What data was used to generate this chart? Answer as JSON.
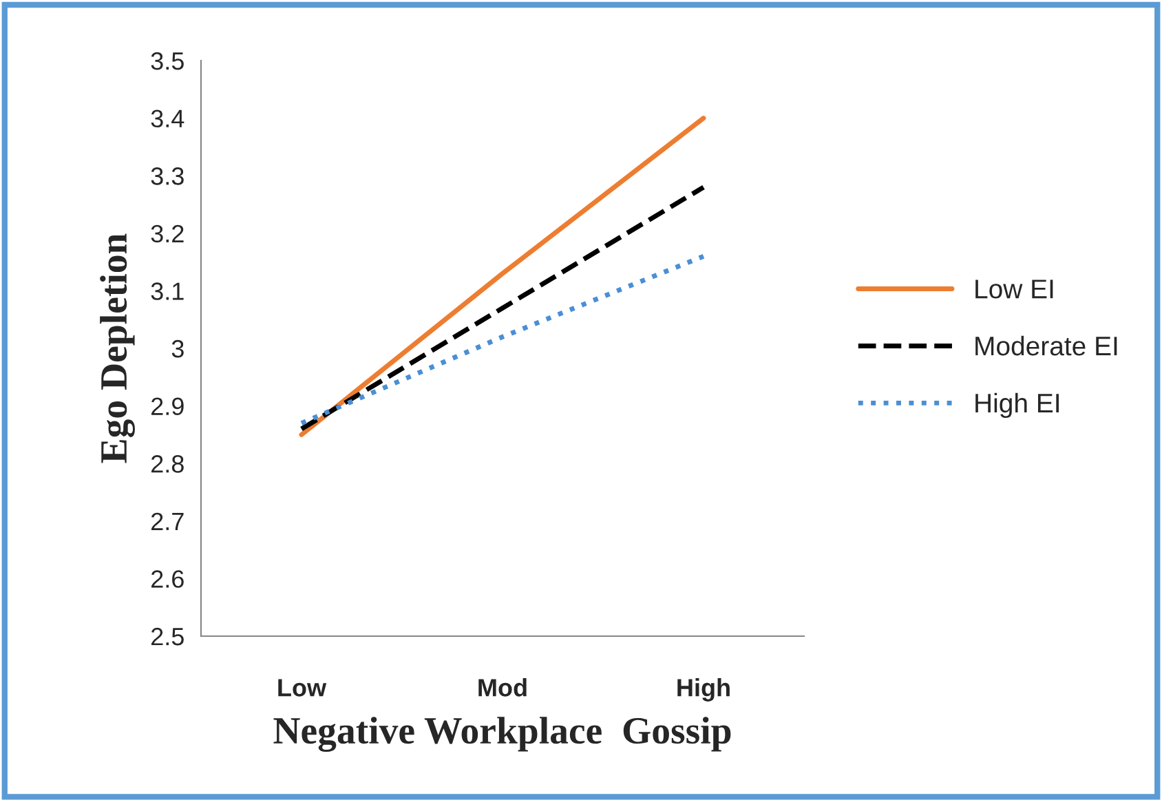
{
  "chart_data": {
    "type": "line",
    "xlabel": "Negative Workplace  Gossip",
    "ylabel": "Ego Depletion",
    "categories": [
      "Low",
      "Mod",
      "High"
    ],
    "series": [
      {
        "name": "Low EI",
        "color": "#ed7d31",
        "line_style": "solid",
        "values": [
          2.85,
          3.13,
          3.4
        ]
      },
      {
        "name": "Moderate EI",
        "color": "#000000",
        "line_style": "dashed",
        "values": [
          2.86,
          3.07,
          3.28
        ]
      },
      {
        "name": "High EI",
        "color": "#4a8fd4",
        "line_style": "dotted",
        "values": [
          2.87,
          3.02,
          3.16
        ]
      }
    ],
    "ylim": [
      2.5,
      3.5
    ],
    "yticks": [
      2.5,
      2.6,
      2.7,
      2.8,
      2.9,
      3,
      3.1,
      3.2,
      3.3,
      3.4,
      3.5
    ],
    "grid": false,
    "legend": "right",
    "marker": "none"
  }
}
